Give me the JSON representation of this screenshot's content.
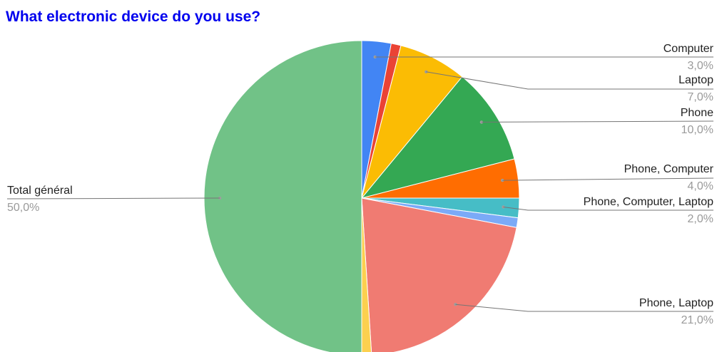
{
  "chart_data": {
    "type": "pie",
    "title": "What electronic device do you use?",
    "start_angle_deg": 0,
    "direction": "clockwise",
    "slices": [
      {
        "label": "Computer",
        "value": 3.0,
        "value_label": "3,0%",
        "color": "#4285f4",
        "labeled": true
      },
      {
        "label": "",
        "value": 1.0,
        "value_label": "",
        "color": "#ea4335",
        "labeled": false
      },
      {
        "label": "Laptop",
        "value": 7.0,
        "value_label": "7,0%",
        "color": "#fbbc04",
        "labeled": true
      },
      {
        "label": "Phone",
        "value": 10.0,
        "value_label": "10,0%",
        "color": "#34a853",
        "labeled": true
      },
      {
        "label": "Phone, Computer",
        "value": 4.0,
        "value_label": "4,0%",
        "color": "#ff6d01",
        "labeled": true
      },
      {
        "label": "Phone, Computer, Laptop",
        "value": 2.0,
        "value_label": "2,0%",
        "color": "#46bdc6",
        "labeled": true
      },
      {
        "label": "",
        "value": 1.0,
        "value_label": "",
        "color": "#7baaf7",
        "labeled": false
      },
      {
        "label": "Phone, Laptop",
        "value": 21.0,
        "value_label": "21,0%",
        "color": "#f07b72",
        "labeled": true
      },
      {
        "label": "",
        "value": 1.0,
        "value_label": "",
        "color": "#fcd04f",
        "labeled": false
      },
      {
        "label": "Total général",
        "value": 50.0,
        "value_label": "50,0%",
        "color": "#71c287",
        "labeled": true
      }
    ]
  }
}
